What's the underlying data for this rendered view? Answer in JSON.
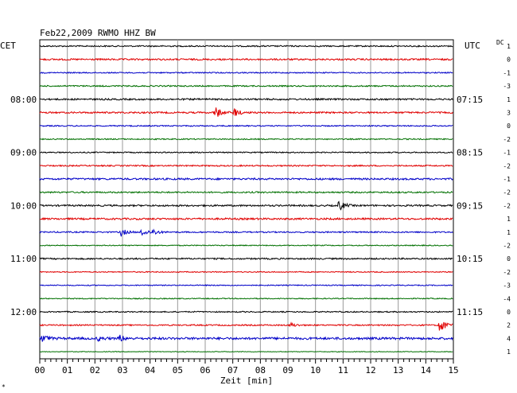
{
  "chart_data": {
    "type": "line",
    "title": "Feb22,2009   RWMO HHZ BW",
    "left_timezone": "CET",
    "right_timezone": "UTC",
    "dc_label": "DC",
    "xlabel": "Zeit [min]",
    "x_ticks": [
      "00",
      "01",
      "02",
      "03",
      "04",
      "05",
      "06",
      "07",
      "08",
      "09",
      "10",
      "11",
      "12",
      "13",
      "14",
      "15"
    ],
    "xlim": [
      0,
      15
    ],
    "grid": true,
    "trace_colors": [
      "#000000",
      "#e00000",
      "#0000c8",
      "#007000"
    ],
    "left_hour_labels": [
      {
        "row": 4,
        "text": "08:00"
      },
      {
        "row": 8,
        "text": "09:00"
      },
      {
        "row": 12,
        "text": "10:00"
      },
      {
        "row": 16,
        "text": "11:00"
      },
      {
        "row": 20,
        "text": "12:00"
      }
    ],
    "right_hour_labels": [
      {
        "row": 4,
        "text": "07:15"
      },
      {
        "row": 8,
        "text": "08:15"
      },
      {
        "row": 12,
        "text": "09:15"
      },
      {
        "row": 16,
        "text": "10:15"
      },
      {
        "row": 20,
        "text": "11:15"
      }
    ],
    "dc_offsets": [
      "1",
      "0",
      "-1",
      "-3",
      "1",
      "3",
      "0",
      "-2",
      "-1",
      "-2",
      "-1",
      "-2",
      "-2",
      "1",
      "1",
      "-2",
      "0",
      "-2",
      "-3",
      "-4",
      "0",
      "2",
      "4",
      "1"
    ],
    "traces": [
      {
        "row": 0,
        "noise": 0.8
      },
      {
        "row": 1,
        "noise": 1.0
      },
      {
        "row": 2,
        "noise": 0.7
      },
      {
        "row": 3,
        "noise": 0.8
      },
      {
        "row": 4,
        "noise": 1.0
      },
      {
        "row": 5,
        "noise": 1.0,
        "events": [
          {
            "t": 6.35,
            "amp": 9
          },
          {
            "t": 7.05,
            "amp": 6
          }
        ]
      },
      {
        "row": 6,
        "noise": 0.7
      },
      {
        "row": 7,
        "noise": 0.7
      },
      {
        "row": 8,
        "noise": 0.7
      },
      {
        "row": 9,
        "noise": 0.8
      },
      {
        "row": 10,
        "noise": 1.1
      },
      {
        "row": 11,
        "noise": 0.9
      },
      {
        "row": 12,
        "noise": 1.0,
        "events": [
          {
            "t": 10.85,
            "amp": 7
          }
        ]
      },
      {
        "row": 13,
        "noise": 1.1
      },
      {
        "row": 14,
        "noise": 0.8,
        "events": [
          {
            "t": 2.95,
            "amp": 5
          },
          {
            "t": 3.7,
            "amp": 6
          },
          {
            "t": 4.1,
            "amp": 4
          }
        ]
      },
      {
        "row": 15,
        "noise": 0.6
      },
      {
        "row": 16,
        "noise": 0.9
      },
      {
        "row": 17,
        "noise": 0.6
      },
      {
        "row": 18,
        "noise": 0.6
      },
      {
        "row": 19,
        "noise": 0.6
      },
      {
        "row": 20,
        "noise": 0.7
      },
      {
        "row": 21,
        "noise": 0.8,
        "events": [
          {
            "t": 9.1,
            "amp": 3
          },
          {
            "t": 14.5,
            "amp": 12
          }
        ]
      },
      {
        "row": 22,
        "noise": 1.4,
        "events": [
          {
            "t": 0.1,
            "amp": 5
          },
          {
            "t": 2.1,
            "amp": 3
          },
          {
            "t": 2.9,
            "amp": 4
          }
        ]
      },
      {
        "row": 23,
        "noise": 0.4
      }
    ]
  }
}
